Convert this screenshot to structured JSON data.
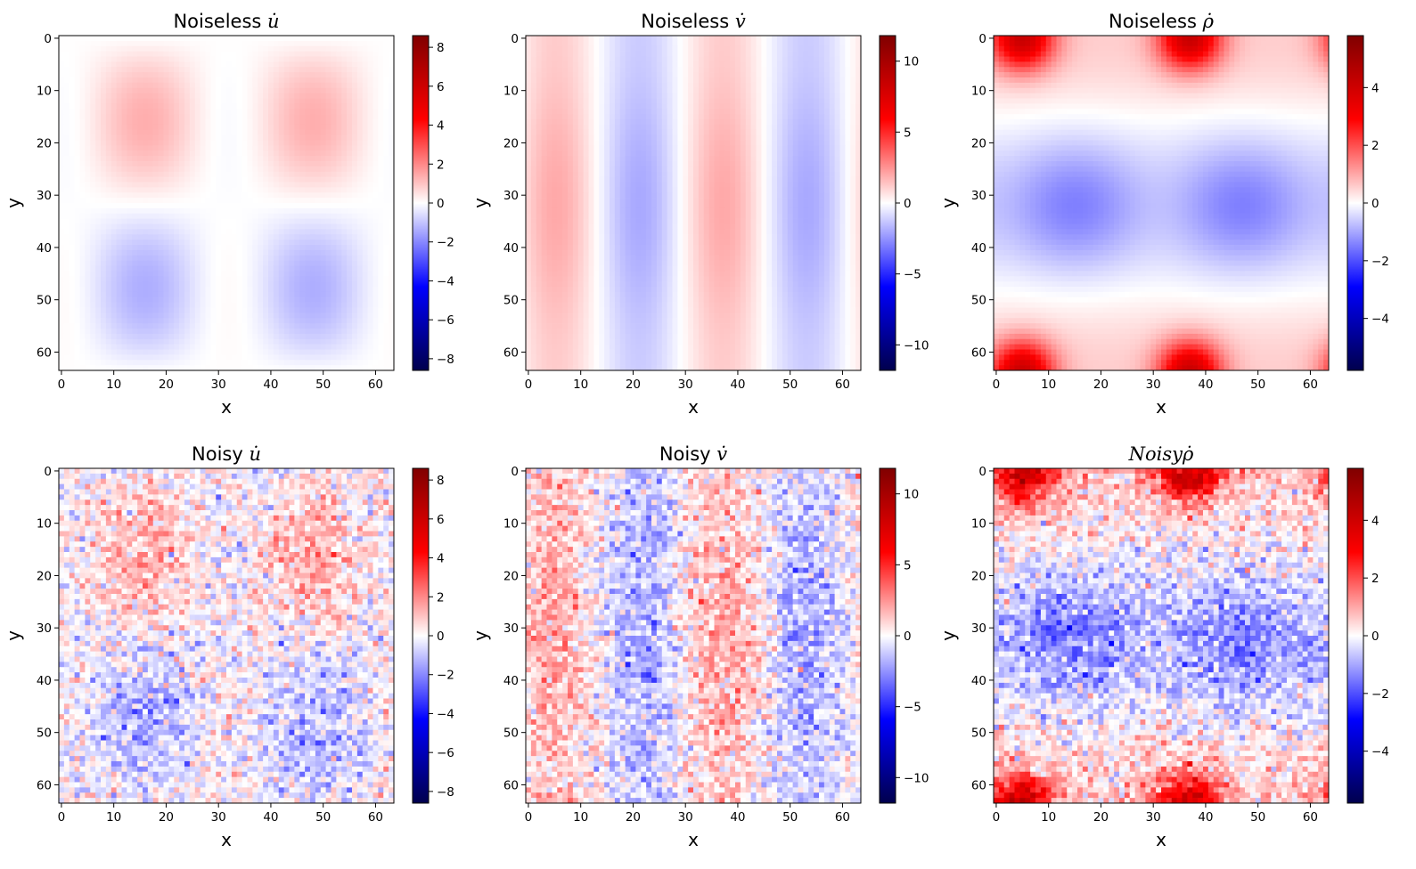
{
  "chart_data": [
    {
      "type": "heatmap",
      "title": "Noiseless u̇",
      "title_text": "Noiseless ",
      "title_symbol": "u̇",
      "xlabel": "x",
      "ylabel": "y",
      "grid_size": 64,
      "xlim": [
        0,
        63
      ],
      "ylim": [
        63,
        0
      ],
      "xticks": [
        "0",
        "10",
        "20",
        "30",
        "40",
        "50",
        "60"
      ],
      "yticks": [
        "0",
        "10",
        "20",
        "30",
        "40",
        "50",
        "60"
      ],
      "colormap": "seismic",
      "vmin": -8.6,
      "vmax": 8.6,
      "colorbar_ticks": [
        "8",
        "6",
        "4",
        "2",
        "0",
        "−2",
        "−4",
        "−6",
        "−8"
      ],
      "colorbar_tick_values": [
        8,
        6,
        4,
        2,
        0,
        -2,
        -4,
        -6,
        -8
      ],
      "field": "u",
      "noise": false,
      "noise_level": 0
    },
    {
      "type": "heatmap",
      "title": "Noiseless v̇",
      "title_text": "Noiseless ",
      "title_symbol": "v̇",
      "xlabel": "x",
      "ylabel": "y",
      "grid_size": 64,
      "xlim": [
        0,
        63
      ],
      "ylim": [
        63,
        0
      ],
      "xticks": [
        "0",
        "10",
        "20",
        "30",
        "40",
        "50",
        "60"
      ],
      "yticks": [
        "0",
        "10",
        "20",
        "30",
        "40",
        "50",
        "60"
      ],
      "colormap": "seismic",
      "vmin": -11.8,
      "vmax": 11.8,
      "colorbar_ticks": [
        "10",
        "5",
        "0",
        "−5",
        "−10"
      ],
      "colorbar_tick_values": [
        10,
        5,
        0,
        -5,
        -10
      ],
      "field": "v",
      "noise": false,
      "noise_level": 0
    },
    {
      "type": "heatmap",
      "title": "Noiseless ρ̇",
      "title_text": "Noiseless ",
      "title_symbol": "ρ̇",
      "xlabel": "x",
      "ylabel": "y",
      "grid_size": 64,
      "xlim": [
        0,
        63
      ],
      "ylim": [
        63,
        0
      ],
      "xticks": [
        "0",
        "10",
        "20",
        "30",
        "40",
        "50",
        "60"
      ],
      "yticks": [
        "0",
        "10",
        "20",
        "30",
        "40",
        "50",
        "60"
      ],
      "colormap": "seismic",
      "vmin": -5.8,
      "vmax": 5.8,
      "colorbar_ticks": [
        "4",
        "2",
        "0",
        "−2",
        "−4"
      ],
      "colorbar_tick_values": [
        4,
        2,
        0,
        -2,
        -4
      ],
      "field": "rho",
      "noise": false,
      "noise_level": 0
    },
    {
      "type": "heatmap",
      "title": "Noisy u̇",
      "title_text": "Noisy ",
      "title_symbol": "u̇",
      "xlabel": "x",
      "ylabel": "y",
      "grid_size": 64,
      "xlim": [
        0,
        63
      ],
      "ylim": [
        63,
        0
      ],
      "xticks": [
        "0",
        "10",
        "20",
        "30",
        "40",
        "50",
        "60"
      ],
      "yticks": [
        "0",
        "10",
        "20",
        "30",
        "40",
        "50",
        "60"
      ],
      "colormap": "seismic",
      "vmin": -8.6,
      "vmax": 8.6,
      "colorbar_ticks": [
        "8",
        "6",
        "4",
        "2",
        "0",
        "−2",
        "−4",
        "−6",
        "−8"
      ],
      "colorbar_tick_values": [
        8,
        6,
        4,
        2,
        0,
        -2,
        -4,
        -6,
        -8
      ],
      "field": "u",
      "noise": true,
      "noise_level": 0.8
    },
    {
      "type": "heatmap",
      "title": "Noisy v̇",
      "title_text": "Noisy ",
      "title_symbol": "v̇",
      "xlabel": "x",
      "ylabel": "y",
      "grid_size": 64,
      "xlim": [
        0,
        63
      ],
      "ylim": [
        63,
        0
      ],
      "xticks": [
        "0",
        "10",
        "20",
        "30",
        "40",
        "50",
        "60"
      ],
      "yticks": [
        "0",
        "10",
        "20",
        "30",
        "40",
        "50",
        "60"
      ],
      "colormap": "seismic",
      "vmin": -11.8,
      "vmax": 11.8,
      "colorbar_ticks": [
        "10",
        "5",
        "0",
        "−5",
        "−10"
      ],
      "colorbar_tick_values": [
        10,
        5,
        0,
        -5,
        -10
      ],
      "field": "v",
      "noise": true,
      "noise_level": 1.1
    },
    {
      "type": "heatmap",
      "title": "Noisy ρ̇",
      "title_text": "",
      "title_symbol": "Noisyρ̇",
      "xlabel": "x",
      "ylabel": "y",
      "grid_size": 64,
      "xlim": [
        0,
        63
      ],
      "ylim": [
        63,
        0
      ],
      "xticks": [
        "0",
        "10",
        "20",
        "30",
        "40",
        "50",
        "60"
      ],
      "yticks": [
        "0",
        "10",
        "20",
        "30",
        "40",
        "50",
        "60"
      ],
      "colormap": "seismic",
      "vmin": -5.8,
      "vmax": 5.8,
      "colorbar_ticks": [
        "4",
        "2",
        "0",
        "−2",
        "−4"
      ],
      "colorbar_tick_values": [
        4,
        2,
        0,
        -2,
        -4
      ],
      "field": "rho",
      "noise": true,
      "noise_level": 0.55
    }
  ]
}
